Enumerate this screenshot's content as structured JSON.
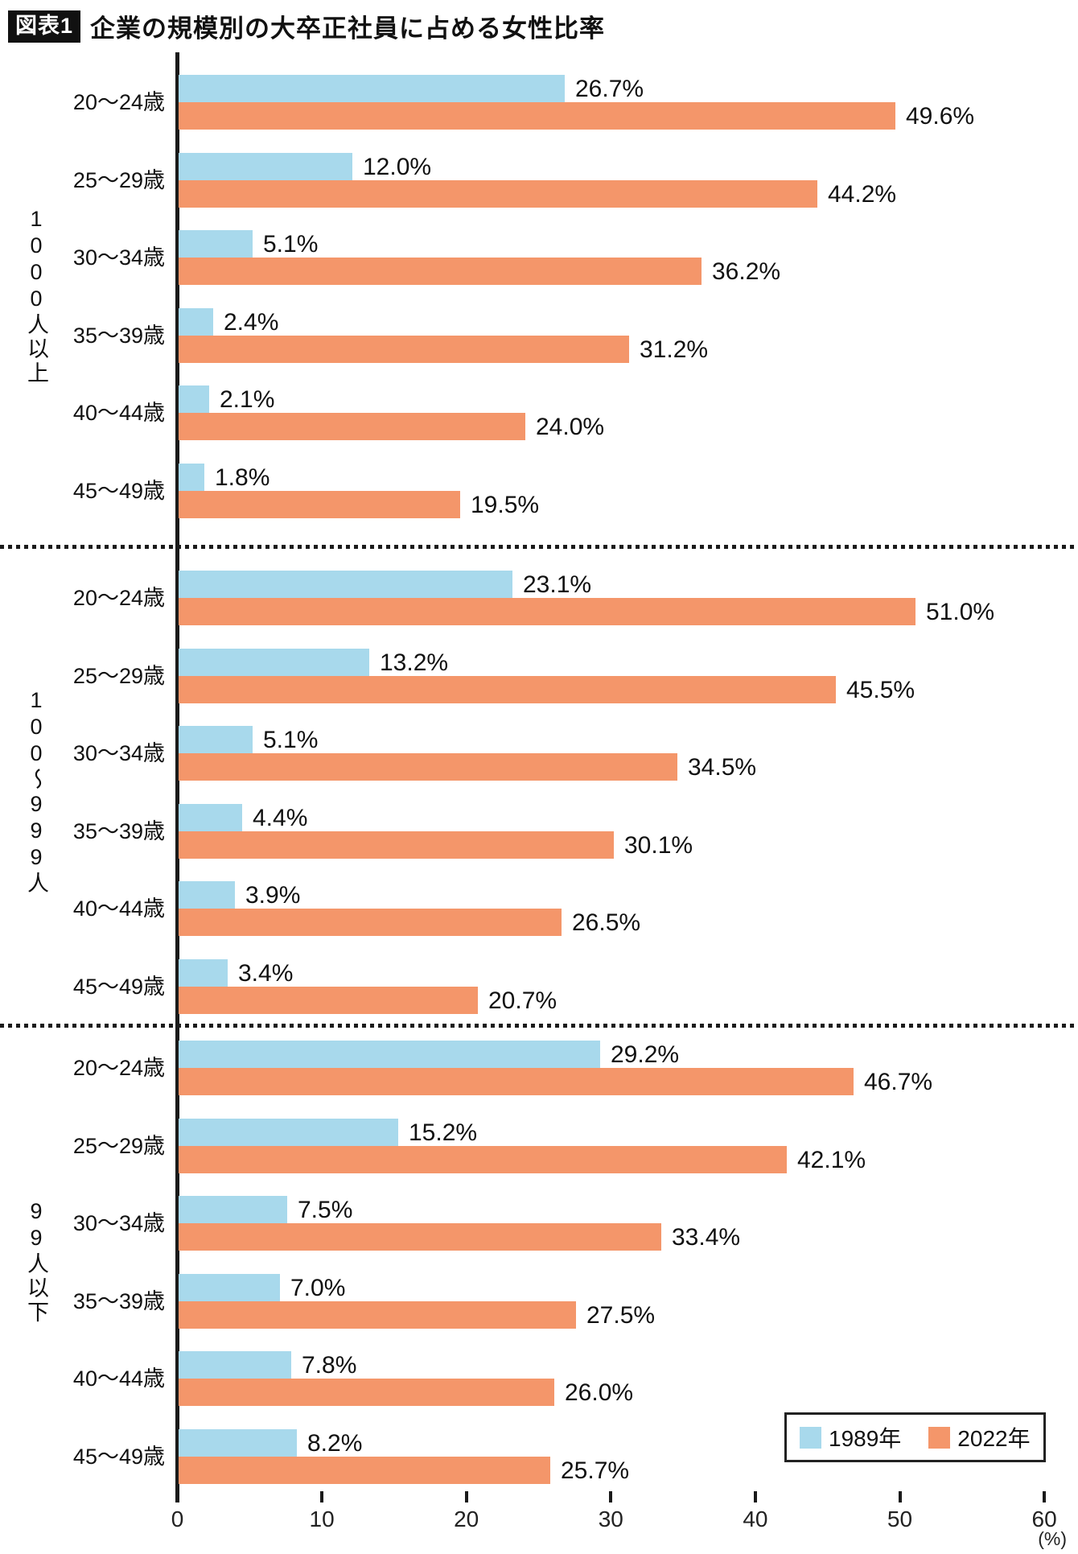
{
  "title": {
    "badge": "図表1",
    "text": "企業の規模別の大卒正社員に占める女性比率"
  },
  "legend": [
    {
      "label": "1989年",
      "color": "#a8d9ec"
    },
    {
      "label": "2022年",
      "color": "#f4966a"
    }
  ],
  "axis": {
    "tick_labels": [
      "0",
      "10",
      "20",
      "30",
      "40",
      "50",
      "60"
    ],
    "unit": "(%)"
  },
  "colors": {
    "bar_1989": "#a8d9ec",
    "bar_2022": "#f4966a",
    "axis": "#1a1a1a"
  },
  "chart_data": {
    "type": "bar",
    "orientation": "horizontal",
    "title": "企業の規模別の大卒正社員に占める女性比率",
    "xlabel": "(%)",
    "xlim": [
      0,
      60
    ],
    "x_ticks": [
      0,
      10,
      20,
      30,
      40,
      50,
      60
    ],
    "grid": false,
    "legend_position": "bottom-right",
    "series_names": [
      "1989年",
      "2022年"
    ],
    "categories": [
      "20〜24歳",
      "25〜29歳",
      "30〜34歳",
      "35〜39歳",
      "40〜44歳",
      "45〜49歳"
    ],
    "groups": [
      {
        "label": "1000人以上",
        "series": [
          {
            "name": "1989年",
            "values": [
              26.7,
              12.0,
              5.1,
              2.4,
              2.1,
              1.8
            ],
            "labels": [
              "26.7%",
              "12.0%",
              "5.1%",
              "2.4%",
              "2.1%",
              "1.8%"
            ]
          },
          {
            "name": "2022年",
            "values": [
              49.6,
              44.2,
              36.2,
              31.2,
              24.0,
              19.5
            ],
            "labels": [
              "49.6%",
              "44.2%",
              "36.2%",
              "31.2%",
              "24.0%",
              "19.5%"
            ]
          }
        ]
      },
      {
        "label": "100〜999人",
        "series": [
          {
            "name": "1989年",
            "values": [
              23.1,
              13.2,
              5.1,
              4.4,
              3.9,
              3.4
            ],
            "labels": [
              "23.1%",
              "13.2%",
              "5.1%",
              "4.4%",
              "3.9%",
              "3.4%"
            ]
          },
          {
            "name": "2022年",
            "values": [
              51.0,
              45.5,
              34.5,
              30.1,
              26.5,
              20.7
            ],
            "labels": [
              "51.0%",
              "45.5%",
              "34.5%",
              "30.1%",
              "26.5%",
              "20.7%"
            ]
          }
        ]
      },
      {
        "label": "99人以下",
        "series": [
          {
            "name": "1989年",
            "values": [
              29.2,
              15.2,
              7.5,
              7.0,
              7.8,
              8.2
            ],
            "labels": [
              "29.2%",
              "15.2%",
              "7.5%",
              "7.0%",
              "7.8%",
              "8.2%"
            ]
          },
          {
            "name": "2022年",
            "values": [
              46.7,
              42.1,
              33.4,
              27.5,
              26.0,
              25.7
            ],
            "labels": [
              "46.7%",
              "42.1%",
              "33.4%",
              "27.5%",
              "26.0%",
              "25.7%"
            ]
          }
        ]
      }
    ]
  }
}
